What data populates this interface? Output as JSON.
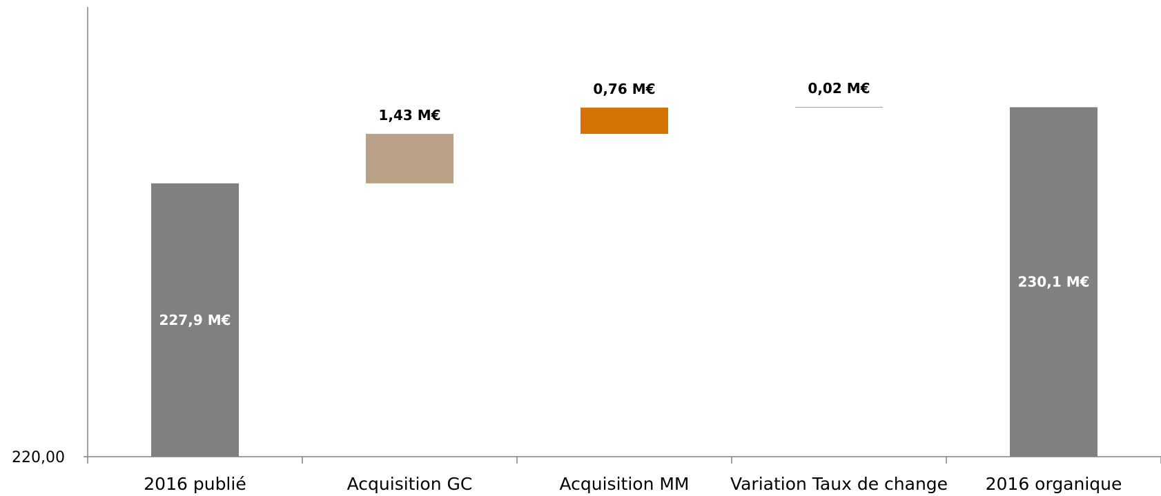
{
  "chart_data": {
    "type": "bar",
    "subtype": "waterfall",
    "title": "",
    "xlabel": "",
    "ylabel": "",
    "grid": false,
    "legend": "none",
    "ylim": [
      220,
      233.0
    ],
    "yticks": [
      220
    ],
    "ytick_labels": [
      "220,00"
    ],
    "categories": [
      "2016 publié",
      "Acquisition GC",
      "Acquisition MM",
      "Variation Taux de change",
      "2016 organique"
    ],
    "bars": [
      {
        "kind": "total",
        "start": 220,
        "end": 227.9,
        "label": "227,9 M€",
        "color": "#808080",
        "label_color": "#ffffff",
        "label_position": "inside"
      },
      {
        "kind": "delta",
        "start": 227.9,
        "end": 229.33,
        "label": "1,43 M€",
        "color": "#b8a186",
        "label_color": "#000000",
        "label_position": "above"
      },
      {
        "kind": "delta",
        "start": 229.33,
        "end": 230.09,
        "label": "0,76 M€",
        "color": "#d27304",
        "label_color": "#000000",
        "label_position": "above"
      },
      {
        "kind": "delta",
        "start": 230.09,
        "end": 230.11,
        "label": "0,02 M€",
        "color": "#c8956a",
        "label_color": "#000000",
        "label_position": "above"
      },
      {
        "kind": "total",
        "start": 220,
        "end": 230.1,
        "label": "230,1 M€",
        "color": "#808080",
        "label_color": "#ffffff",
        "label_position": "inside"
      }
    ],
    "axis_color": "#808080"
  }
}
